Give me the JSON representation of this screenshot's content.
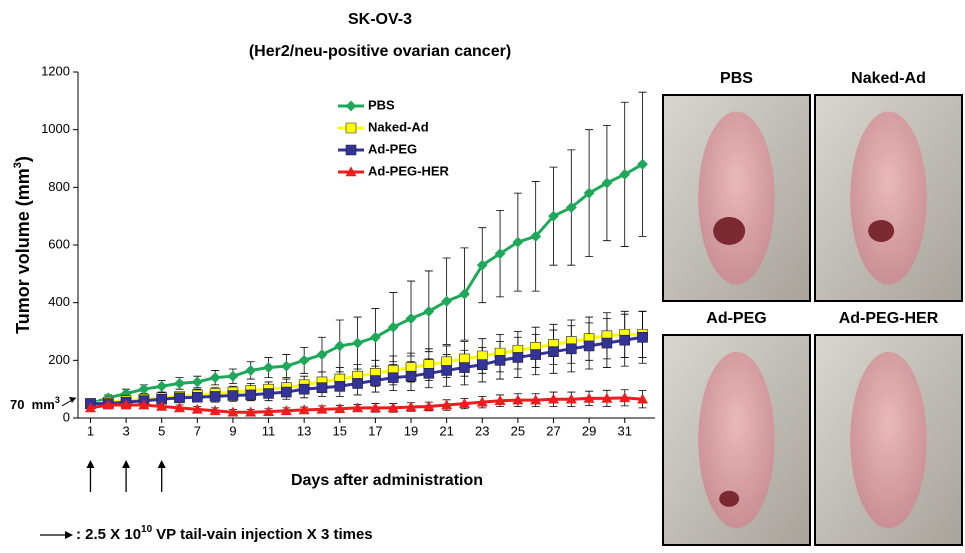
{
  "chart_data": {
    "type": "line",
    "title": "SK-OV-3",
    "subtitle": "(Her2/neu-positive ovarian cancer)",
    "ylabel": {
      "text": "Tumor volume (mm",
      "sup": "3",
      "end": ")"
    },
    "xlabel": "Days after administration",
    "x": [
      1,
      2,
      3,
      4,
      5,
      6,
      7,
      8,
      9,
      10,
      11,
      12,
      13,
      14,
      15,
      16,
      17,
      18,
      19,
      20,
      21,
      22,
      23,
      24,
      25,
      26,
      27,
      28,
      29,
      30,
      31,
      32
    ],
    "xlim": [
      0.3,
      32.7
    ],
    "xticks": [
      1,
      3,
      5,
      7,
      9,
      11,
      13,
      15,
      17,
      19,
      21,
      23,
      25,
      27,
      29,
      31
    ],
    "ylim": [
      0,
      1200
    ],
    "yticks": [
      0,
      200,
      400,
      600,
      800,
      1000,
      1200
    ],
    "series": [
      {
        "name": "PBS",
        "color": "#1fa85a",
        "marker": "diamond",
        "values": [
          50,
          70,
          85,
          100,
          110,
          120,
          125,
          140,
          145,
          165,
          175,
          180,
          200,
          220,
          250,
          260,
          280,
          315,
          345,
          370,
          405,
          430,
          530,
          570,
          610,
          630,
          700,
          730,
          780,
          815,
          845,
          880
        ],
        "errors": [
          10,
          10,
          15,
          15,
          20,
          20,
          20,
          25,
          25,
          30,
          35,
          40,
          45,
          60,
          90,
          90,
          100,
          120,
          130,
          140,
          150,
          160,
          130,
          150,
          170,
          190,
          170,
          200,
          220,
          200,
          250,
          250
        ]
      },
      {
        "name": "Naked-Ad",
        "color": "#ffff00",
        "marker": "square",
        "values": [
          50,
          55,
          60,
          65,
          70,
          75,
          80,
          85,
          90,
          95,
          100,
          105,
          115,
          125,
          135,
          145,
          155,
          165,
          175,
          185,
          195,
          205,
          215,
          225,
          235,
          245,
          255,
          265,
          275,
          285,
          290,
          290
        ],
        "errors": [
          10,
          10,
          10,
          15,
          15,
          15,
          20,
          20,
          20,
          25,
          25,
          30,
          30,
          35,
          40,
          40,
          45,
          50,
          50,
          55,
          55,
          60,
          60,
          65,
          65,
          70,
          70,
          75,
          75,
          80,
          80,
          80
        ]
      },
      {
        "name": "Ad-PEG",
        "color": "#333399",
        "marker": "square",
        "values": [
          50,
          50,
          55,
          60,
          65,
          70,
          72,
          75,
          78,
          80,
          85,
          90,
          100,
          105,
          110,
          120,
          130,
          140,
          145,
          155,
          165,
          175,
          185,
          200,
          210,
          220,
          230,
          240,
          250,
          260,
          270,
          280
        ],
        "errors": [
          10,
          10,
          10,
          15,
          15,
          15,
          15,
          20,
          20,
          20,
          25,
          25,
          30,
          30,
          35,
          40,
          40,
          45,
          50,
          50,
          55,
          60,
          60,
          65,
          70,
          70,
          75,
          80,
          80,
          85,
          90,
          90
        ]
      },
      {
        "name": "Ad-PEG-HER",
        "color": "#ee1c1c",
        "marker": "triangle",
        "values": [
          35,
          45,
          45,
          45,
          40,
          35,
          30,
          25,
          20,
          20,
          22,
          25,
          28,
          30,
          32,
          35,
          35,
          35,
          38,
          40,
          45,
          50,
          55,
          60,
          62,
          62,
          65,
          65,
          68,
          68,
          70,
          65
        ],
        "errors": [
          10,
          10,
          10,
          10,
          10,
          10,
          10,
          10,
          10,
          10,
          10,
          10,
          10,
          12,
          12,
          12,
          15,
          15,
          15,
          15,
          18,
          18,
          20,
          20,
          22,
          22,
          25,
          25,
          25,
          28,
          28,
          30
        ]
      }
    ],
    "reference": {
      "value": 70,
      "label": "70  mm",
      "sup": "3"
    },
    "injection_days": [
      1,
      3,
      5
    ],
    "footnote": {
      "prefix": ": 2.5 X 10",
      "exponent": "10",
      "suffix": "VP tail-vain injection X 3 times"
    },
    "photos": [
      {
        "label": "PBS"
      },
      {
        "label": "Naked-Ad"
      },
      {
        "label": "Ad-PEG"
      },
      {
        "label": "Ad-PEG-HER"
      }
    ]
  }
}
